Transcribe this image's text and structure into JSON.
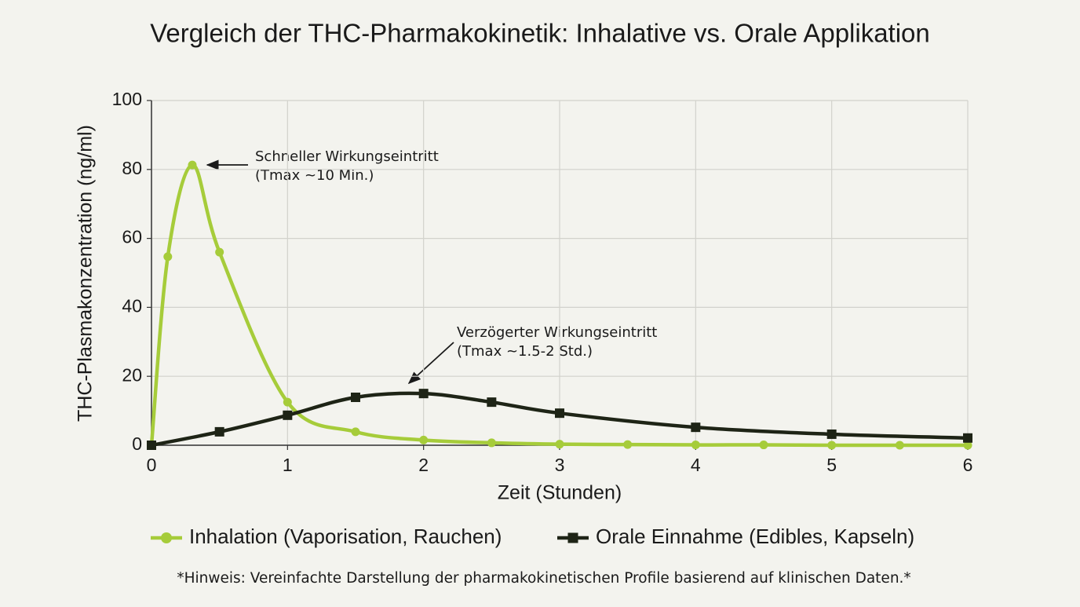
{
  "chart_data": {
    "type": "line",
    "title": "Vergleich der THC-Pharmakokinetik: Inhalative vs. Orale Applikation",
    "x_label": "Zeit (Stunden)",
    "y_label": "THC-Plasmakonzentration (ng/ml)",
    "xlim": [
      0,
      6
    ],
    "ylim": [
      0,
      100
    ],
    "xticks": [
      0,
      1,
      2,
      3,
      4,
      5,
      6
    ],
    "yticks": [
      0,
      20,
      40,
      60,
      80,
      100
    ],
    "grid": true,
    "legend_position": "bottom",
    "series": [
      {
        "name": "Inhalation (Vaporisation, Rauchen)",
        "color": "#a6cc3a",
        "marker": "circle",
        "x": [
          0,
          0.12,
          0.3,
          0.5,
          1,
          1.5,
          2,
          2.5,
          3,
          3.5,
          4,
          4.5,
          5,
          5.5,
          6
        ],
        "values": [
          0,
          54.7,
          81.3,
          56,
          12.5,
          3.9,
          1.5,
          0.7,
          0.3,
          0.2,
          0.1,
          0.1,
          0,
          0,
          0
        ]
      },
      {
        "name": "Orale Einnahme (Edibles, Kapseln)",
        "color": "#1e2416",
        "marker": "square",
        "x": [
          0,
          0.5,
          1,
          1.5,
          2,
          2.5,
          3,
          4,
          5,
          6
        ],
        "values": [
          0,
          3.9,
          8.7,
          13.9,
          15,
          12.5,
          9.3,
          5.2,
          3.2,
          2.1
        ]
      }
    ],
    "annotations": [
      {
        "lines": [
          "Schneller Wirkungseintritt",
          "(Tmax ~10 Min.)"
        ]
      },
      {
        "lines": [
          "Verzögerter Wirkungseintritt",
          "(Tmax ~1.5-2 Std.)"
        ]
      }
    ],
    "footnote": "*Hinweis: Vereinfachte Darstellung der pharmakokinetischen Profile basierend auf klinischen Daten.*"
  }
}
